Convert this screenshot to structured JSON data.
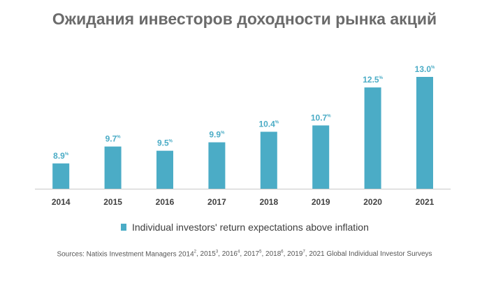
{
  "title": "Ожидания инвесторов доходности рынка акций",
  "colors": {
    "bar": "#4bacc6",
    "label": "#4bacc6",
    "axis": "#c8c8c8",
    "tick": "#404040"
  },
  "chart_data": {
    "type": "bar",
    "title": "Ожидания инвесторов доходности рынка акций",
    "categories": [
      "2014",
      "2015",
      "2016",
      "2017",
      "2018",
      "2019",
      "2020",
      "2021"
    ],
    "series": [
      {
        "name": "Individual investors' return expectations above inflation",
        "values": [
          8.9,
          9.7,
          9.5,
          9.9,
          10.4,
          10.7,
          12.5,
          13.0
        ],
        "labels": [
          "8.9",
          "9.7",
          "9.5",
          "9.9",
          "10.4",
          "10.7",
          "12.5",
          "13.0"
        ],
        "unit": "%"
      }
    ],
    "ylim": [
      7.7,
      13.0
    ],
    "grid": false,
    "legend": "bottom-center"
  },
  "legend_label": "Individual investors' return expectations above inflation",
  "sources": {
    "prefix": "Sources: Natixis Investment Managers 2014",
    "items": [
      {
        "sup": "2",
        "text": ", 2015"
      },
      {
        "sup": "3",
        "text": ", 2016"
      },
      {
        "sup": "4",
        "text": ", 2017"
      },
      {
        "sup": "5",
        "text": ", 2018"
      },
      {
        "sup": "6",
        "text": ", 2019"
      },
      {
        "sup": "7",
        "text": ", 2021 Global Individual Investor Surveys"
      }
    ]
  }
}
